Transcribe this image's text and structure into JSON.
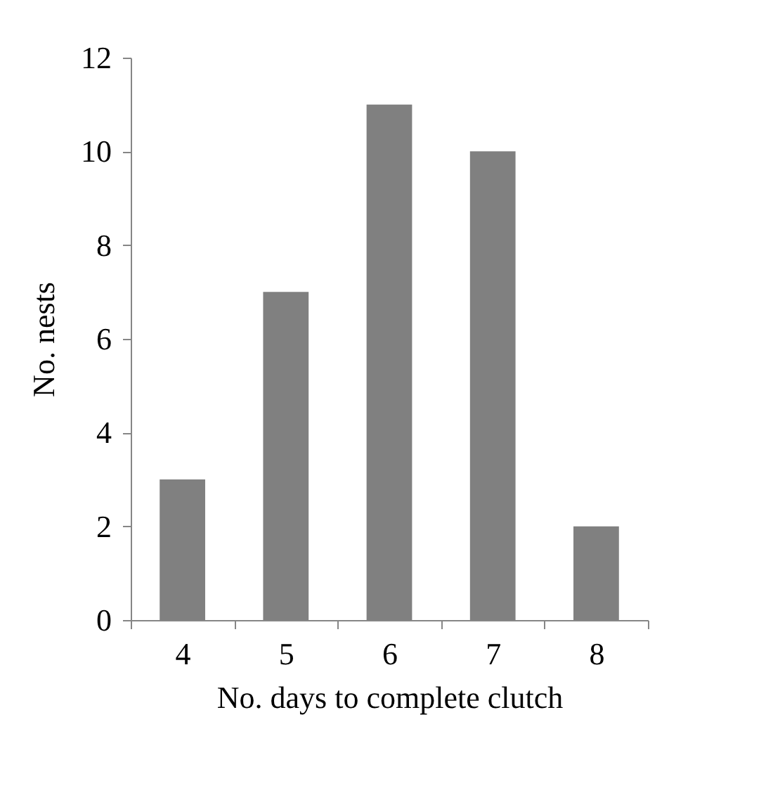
{
  "chart_data": {
    "type": "bar",
    "xlabel": "No. days to complete clutch",
    "ylabel": "No. nests",
    "categories": [
      "4",
      "5",
      "6",
      "7",
      "8"
    ],
    "values": [
      3,
      7,
      11,
      10,
      2
    ],
    "color": "#808080",
    "ylim": [
      0,
      12
    ],
    "yticks": [
      0,
      2,
      4,
      6,
      8,
      10,
      12
    ],
    "grid": false
  }
}
